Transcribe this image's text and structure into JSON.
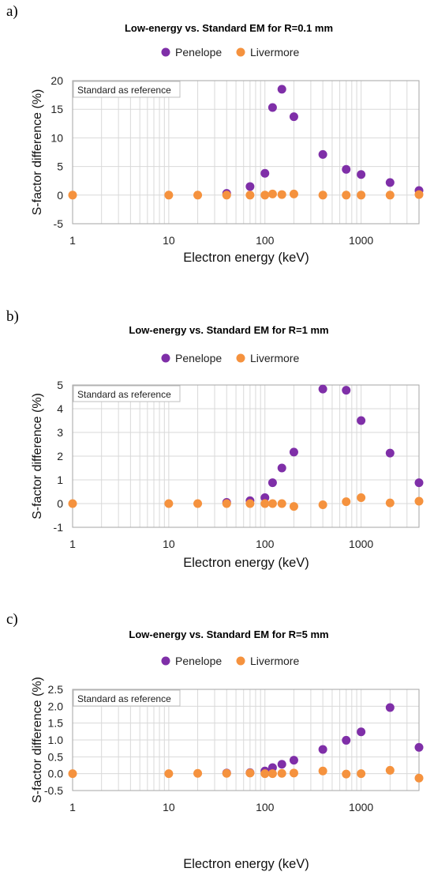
{
  "panels": [
    {
      "letter": "a)"
    },
    {
      "letter": "b)"
    },
    {
      "letter": "c)"
    }
  ],
  "colors": {
    "penelope": "#7f2fa8",
    "livermore": "#f5923e",
    "grid": "#d9d9d9",
    "axis": "#a6a6a6"
  },
  "chart_data": [
    {
      "type": "scatter",
      "title": "Low-energy vs. Standard EM for R=0.1 mm",
      "xlabel": "Electron energy (keV)",
      "ylabel": "S-factor difference (%)",
      "annotation": "Standard as reference",
      "x_scale": "log",
      "xlim": [
        1,
        4000
      ],
      "ylim": [
        -5,
        20
      ],
      "x_ticks": [
        1,
        10,
        100,
        1000
      ],
      "x_tick_labels": [
        "1",
        "10",
        "100",
        "1000"
      ],
      "y_ticks": [
        -5,
        0,
        5,
        10,
        15,
        20
      ],
      "y_tick_labels": [
        "-5",
        "0",
        "5",
        "10",
        "15",
        "20"
      ],
      "legend_position": "top-center",
      "grid": true,
      "series": [
        {
          "name": "Penelope",
          "x": [
            40,
            70,
            100,
            120,
            150,
            200,
            400,
            700,
            1000,
            2000,
            4000
          ],
          "y": [
            0.3,
            1.5,
            3.8,
            15.3,
            18.5,
            13.7,
            7.1,
            4.5,
            3.6,
            2.2,
            0.8
          ]
        },
        {
          "name": "Livermore",
          "x": [
            1,
            10,
            20,
            40,
            70,
            100,
            120,
            150,
            200,
            400,
            700,
            1000,
            2000,
            4000
          ],
          "y": [
            0.0,
            0.0,
            0.0,
            0.0,
            0.0,
            0.0,
            0.2,
            0.1,
            0.2,
            0.0,
            0.0,
            0.0,
            0.0,
            0.1
          ]
        }
      ]
    },
    {
      "type": "scatter",
      "title": "Low-energy vs. Standard EM for R=1 mm",
      "xlabel": "Electron energy (keV)",
      "ylabel": "S-factor difference (%)",
      "annotation": "Standard as reference",
      "x_scale": "log",
      "xlim": [
        1,
        4000
      ],
      "ylim": [
        -1,
        5
      ],
      "x_ticks": [
        1,
        10,
        100,
        1000
      ],
      "x_tick_labels": [
        "1",
        "10",
        "100",
        "1000"
      ],
      "y_ticks": [
        -1,
        0,
        1,
        2,
        3,
        4,
        5
      ],
      "y_tick_labels": [
        "-1",
        "0",
        "1",
        "2",
        "3",
        "4",
        "5"
      ],
      "legend_position": "top-center",
      "grid": true,
      "series": [
        {
          "name": "Penelope",
          "x": [
            40,
            70,
            100,
            120,
            150,
            200,
            400,
            700,
            1000,
            2000,
            4000
          ],
          "y": [
            0.05,
            0.12,
            0.25,
            0.88,
            1.5,
            2.17,
            4.83,
            4.78,
            3.5,
            2.13,
            0.88
          ]
        },
        {
          "name": "Livermore",
          "x": [
            1,
            10,
            20,
            40,
            70,
            100,
            120,
            150,
            200,
            400,
            700,
            1000,
            2000,
            4000
          ],
          "y": [
            0.0,
            0.0,
            0.0,
            0.0,
            0.0,
            0.0,
            0.0,
            0.0,
            -0.12,
            -0.05,
            0.08,
            0.25,
            0.03,
            0.1
          ]
        }
      ]
    },
    {
      "type": "scatter",
      "title": "Low-energy vs. Standard EM for R=5 mm",
      "xlabel": "Electron energy (keV)",
      "ylabel": "S-factor difference (%)",
      "annotation": "Standard as reference",
      "x_scale": "log",
      "xlim": [
        1,
        4000
      ],
      "ylim": [
        -0.5,
        2.5
      ],
      "x_ticks": [
        1,
        10,
        100,
        1000
      ],
      "x_tick_labels": [
        "1",
        "10",
        "100",
        "1000"
      ],
      "y_ticks": [
        -0.5,
        0,
        0.5,
        1,
        1.5,
        2,
        2.5
      ],
      "y_tick_labels": [
        "-0.5",
        "0.0",
        "0.5",
        "1.0",
        "1.5",
        "2.0",
        "2.5"
      ],
      "legend_position": "top-center",
      "grid": true,
      "series": [
        {
          "name": "Penelope",
          "x": [
            40,
            70,
            100,
            120,
            150,
            200,
            400,
            700,
            1000,
            2000,
            4000
          ],
          "y": [
            0.02,
            0.03,
            0.08,
            0.18,
            0.28,
            0.4,
            0.72,
            0.99,
            1.24,
            1.96,
            0.78
          ]
        },
        {
          "name": "Livermore",
          "x": [
            1,
            10,
            20,
            40,
            70,
            100,
            120,
            150,
            200,
            400,
            700,
            1000,
            2000,
            4000
          ],
          "y": [
            0.0,
            0.0,
            0.01,
            0.01,
            0.02,
            0.0,
            0.0,
            0.01,
            0.02,
            0.08,
            -0.01,
            0.0,
            0.1,
            -0.13
          ]
        }
      ]
    }
  ]
}
